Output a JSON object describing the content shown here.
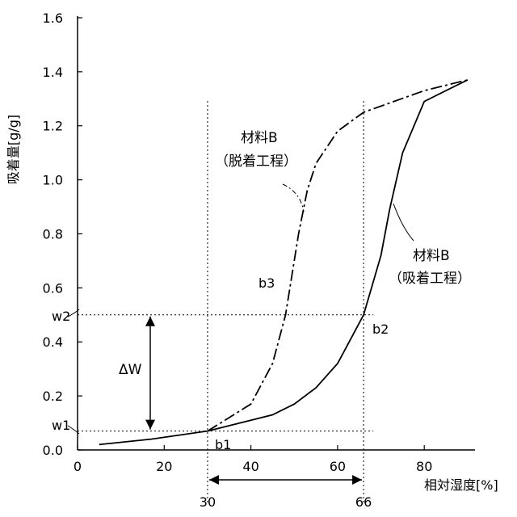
{
  "chart_data": {
    "type": "line",
    "ylabel": "吸着量[g/g]",
    "xlabel": "相対湿度[%]",
    "xlim": [
      0,
      90
    ],
    "ylim": [
      0,
      1.6
    ],
    "x_ticks": [
      "0",
      "20",
      "40",
      "60",
      "80"
    ],
    "y_ticks": [
      "0.0",
      "0.2",
      "0.4",
      "0.6",
      "0.8",
      "1.0",
      "1.2",
      "1.4",
      "1.6"
    ],
    "series": [
      {
        "name": "材料B（吸着工程）",
        "line_style": "solid",
        "points": [
          [
            5,
            0.02
          ],
          [
            17,
            0.04
          ],
          [
            30,
            0.07
          ],
          [
            45,
            0.13
          ],
          [
            50,
            0.17
          ],
          [
            55,
            0.23
          ],
          [
            60,
            0.32
          ],
          [
            63,
            0.41
          ],
          [
            66,
            0.5
          ],
          [
            70,
            0.72
          ],
          [
            72,
            0.89
          ],
          [
            75,
            1.1
          ],
          [
            80,
            1.29
          ],
          [
            85,
            1.33
          ],
          [
            90,
            1.37
          ]
        ]
      },
      {
        "name": "材料B（脱着工程）",
        "line_style": "dashdot",
        "points": [
          [
            30,
            0.07
          ],
          [
            40,
            0.17
          ],
          [
            45,
            0.32
          ],
          [
            48,
            0.5
          ],
          [
            51,
            0.8
          ],
          [
            53,
            0.96
          ],
          [
            55,
            1.06
          ],
          [
            60,
            1.18
          ],
          [
            66,
            1.25
          ],
          [
            80,
            1.33
          ],
          [
            90,
            1.37
          ]
        ]
      }
    ],
    "annotations": {
      "label_adsorption_line1": "材料B",
      "label_adsorption_line2": "（吸着工程）",
      "label_desorption_line1": "材料B",
      "label_desorption_line2": "（脱着工程）",
      "b1": "b1",
      "b2": "b2",
      "b3": "b3",
      "w1": "w1",
      "w2": "w2",
      "delta_w": "ΔW",
      "x_marker_30": "30",
      "x_marker_66": "66"
    },
    "reference_values": {
      "x1": 30,
      "x2": 66,
      "w1": 0.07,
      "w2": 0.5
    },
    "grid": false
  }
}
